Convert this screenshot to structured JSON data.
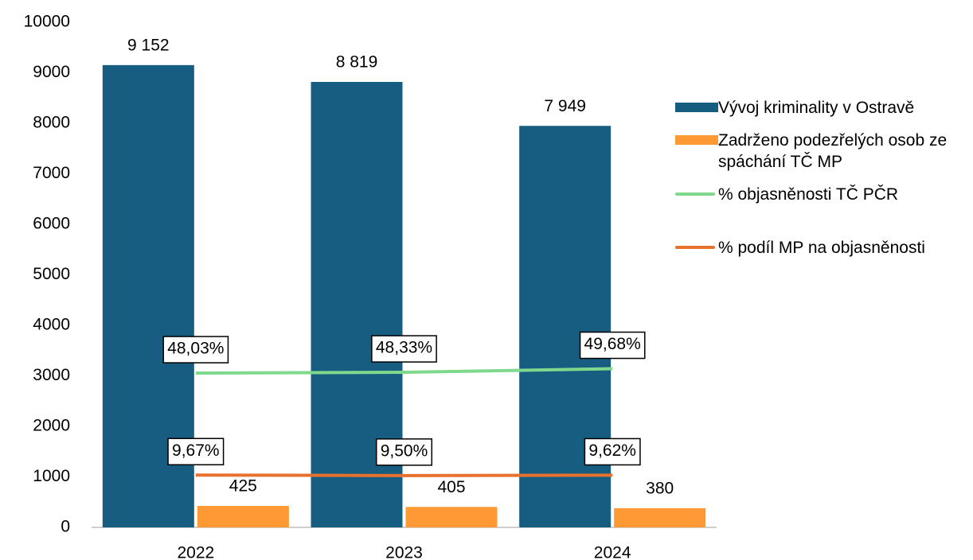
{
  "chart_data": {
    "type": "bar",
    "categories": [
      "2022",
      "2023",
      "2024"
    ],
    "series": [
      {
        "name": "Vývoj kriminality v Ostravě",
        "color": "#175d82",
        "values": [
          9152,
          8819,
          7949
        ],
        "value_labels": [
          "9 152",
          "8 819",
          "7 949"
        ]
      },
      {
        "name": "Zadrženo podezřelých osob ze spáchání TČ MP",
        "color": "#ff9933",
        "values": [
          425,
          405,
          380
        ]
      },
      {
        "name": "% objasněnosti TČ PČR",
        "color": "#7ed98c",
        "type": "line",
        "axis": "y2",
        "values": [
          48.03,
          48.33,
          49.68
        ],
        "value_labels": [
          "48,03%",
          "48,33%",
          "49,68%"
        ]
      },
      {
        "name": "% podíl MP na objasněnosti",
        "color": "#e8712e",
        "type": "line",
        "axis": "y2",
        "values": [
          9.67,
          9.5,
          9.62
        ],
        "value_labels": [
          "9,67%",
          "9,50%",
          "9,62%"
        ]
      }
    ],
    "ylim": [
      0,
      10000
    ],
    "yticks": [
      0,
      1000,
      2000,
      3000,
      4000,
      5000,
      6000,
      7000,
      8000,
      9000,
      10000
    ],
    "y2lim": [
      -10,
      180
    ]
  }
}
